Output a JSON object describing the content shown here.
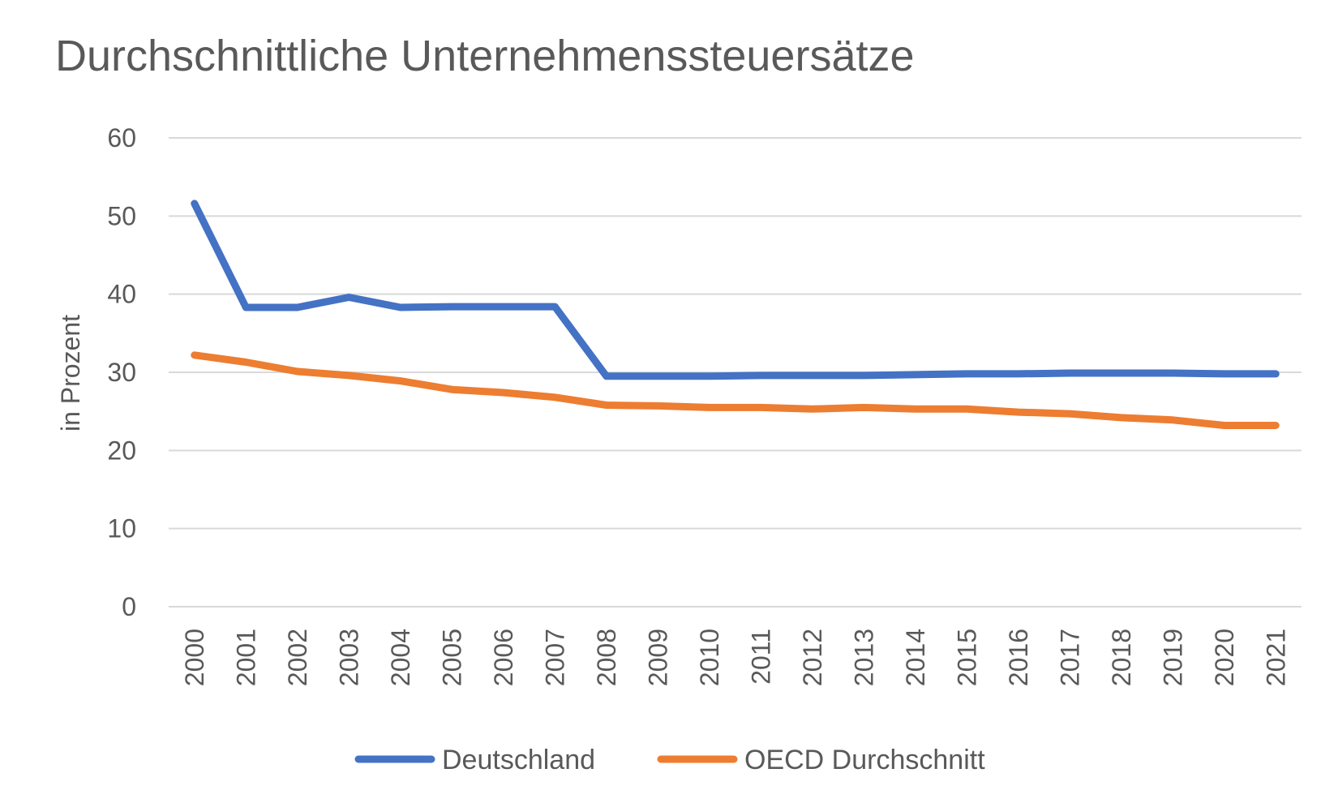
{
  "chart_data": {
    "type": "line",
    "title": "Durchschnittliche Unternehmenssteuersätze",
    "xlabel": "",
    "ylabel": "in Prozent",
    "ylim": [
      0,
      60
    ],
    "yticks": [
      "0",
      "10",
      "20",
      "30",
      "40",
      "50",
      "60"
    ],
    "grid": true,
    "legend_position": "bottom",
    "categories": [
      "2000",
      "2001",
      "2002",
      "2003",
      "2004",
      "2005",
      "2006",
      "2007",
      "2008",
      "2009",
      "2010",
      "2011",
      "2012",
      "2013",
      "2014",
      "2015",
      "2016",
      "2017",
      "2018",
      "2019",
      "2020",
      "2021"
    ],
    "series": [
      {
        "name": "Deutschland",
        "color": "#4472c4",
        "values": [
          51.6,
          38.3,
          38.3,
          39.6,
          38.3,
          38.4,
          38.4,
          38.4,
          29.5,
          29.5,
          29.5,
          29.6,
          29.6,
          29.6,
          29.7,
          29.8,
          29.8,
          29.9,
          29.9,
          29.9,
          29.8,
          29.8
        ]
      },
      {
        "name": "OECD Durchschnitt",
        "color": "#ed7d31",
        "values": [
          32.2,
          31.3,
          30.1,
          29.6,
          28.9,
          27.8,
          27.4,
          26.8,
          25.8,
          25.7,
          25.5,
          25.5,
          25.3,
          25.5,
          25.3,
          25.3,
          24.9,
          24.7,
          24.2,
          23.9,
          23.2,
          23.2
        ]
      }
    ]
  }
}
